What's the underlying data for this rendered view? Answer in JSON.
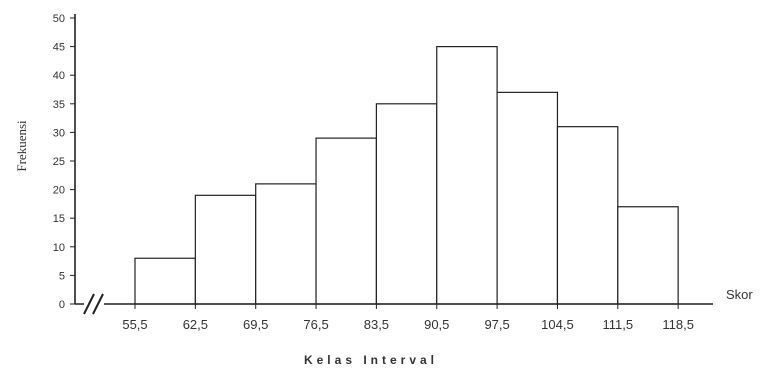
{
  "chart_data": {
    "type": "bar",
    "subtype": "histogram",
    "ylabel": "Frekuensi",
    "xlabel": "Kelas Interval",
    "x_unit_label": "Skor",
    "class_boundaries": [
      "55,5",
      "62,5",
      "69,5",
      "76,5",
      "83,5",
      "90,5",
      "97,5",
      "104,5",
      "111,5",
      "118,5"
    ],
    "values": [
      8,
      19,
      21,
      29,
      35,
      45,
      37,
      31,
      17
    ],
    "ylim": [
      0,
      50
    ],
    "yticks": [
      "0",
      "5",
      "10",
      "15",
      "20",
      "25",
      "30",
      "35",
      "40",
      "45",
      "50"
    ],
    "axis_break": true,
    "grid": false,
    "bar_fill": "#ffffff",
    "bar_stroke": "#222222"
  }
}
